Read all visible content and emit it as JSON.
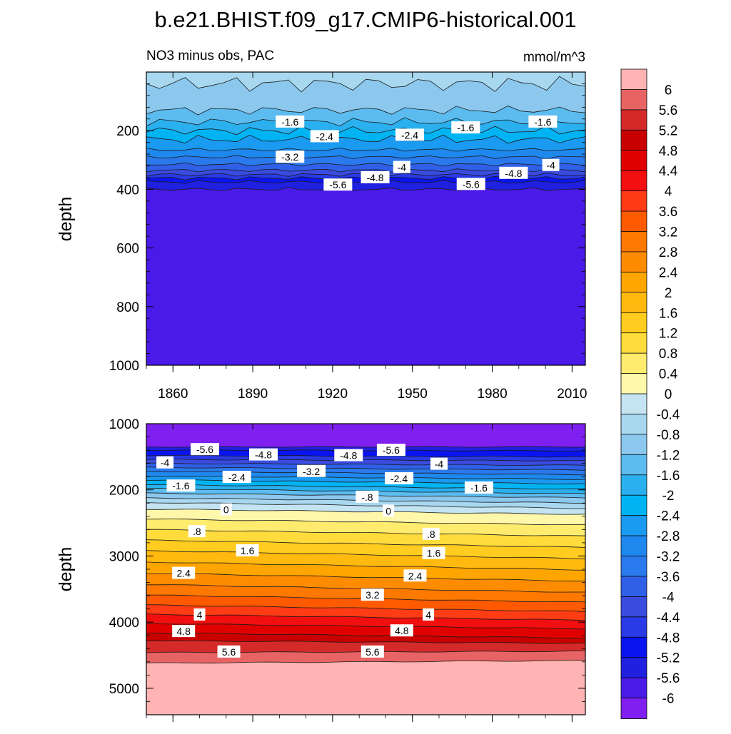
{
  "figure": {
    "title": "b.e21.BHIST.f09_g17.CMIP6-historical.001",
    "left_label": "NO3 minus obs, PAC",
    "units": "mmol/m^3"
  },
  "colorbar": {
    "levels": [
      "6",
      "5.6",
      "5.2",
      "4.8",
      "4.4",
      "4",
      "3.6",
      "3.2",
      "2.8",
      "2.4",
      "2",
      "1.6",
      "1.2",
      "0.8",
      "0.4",
      "0",
      "-0.4",
      "-0.8",
      "-1.2",
      "-1.6",
      "-2",
      "-2.4",
      "-2.8",
      "-3.2",
      "-3.6",
      "-4",
      "-4.4",
      "-4.8",
      "-5.2",
      "-5.6",
      "-6"
    ],
    "colors": [
      "#FFB3B3",
      "#E86464",
      "#D42A2A",
      "#C80000",
      "#E10000",
      "#F20F0F",
      "#FF3C14",
      "#FF5A00",
      "#FF7800",
      "#FF8C00",
      "#FFA500",
      "#FFB90F",
      "#FFCC1F",
      "#FFDC3C",
      "#FFEB6E",
      "#FFF7AA",
      "#C4E4F2",
      "#A8D8F0",
      "#8CC8EE",
      "#5CBCF0",
      "#2AB0EE",
      "#00B4F4",
      "#1A9AF0",
      "#1E88EE",
      "#2A7AEE",
      "#3060E8",
      "#3A4CE0",
      "#2A3AE6",
      "#0A14F0",
      "#2020E0",
      "#4A1AE8",
      "#8020F0"
    ]
  },
  "chart_data": [
    {
      "type": "heatmap",
      "panel": "top",
      "title": "NO3 minus obs, PAC",
      "units": "mmol/m^3",
      "xlabel": "",
      "ylabel": "depth",
      "xlim": [
        1850,
        2015
      ],
      "ylim": [
        0,
        1000
      ],
      "y_reversed": true,
      "x_ticks": [
        "1860",
        "1890",
        "1920",
        "1950",
        "1980",
        "2010"
      ],
      "y_ticks": [
        "200",
        "400",
        "600",
        "800",
        "1000"
      ],
      "contour_lines": [
        {
          "value": -0.8,
          "depth": 40
        },
        {
          "value": -1.2,
          "depth": 130
        },
        {
          "value": -1.6,
          "depth": 170
        },
        {
          "value": -2.0,
          "depth": 200
        },
        {
          "value": -2.4,
          "depth": 230
        },
        {
          "value": -2.8,
          "depth": 265
        },
        {
          "value": -3.2,
          "depth": 290
        },
        {
          "value": -3.6,
          "depth": 315
        },
        {
          "value": -4.0,
          "depth": 335
        },
        {
          "value": -4.4,
          "depth": 350
        },
        {
          "value": -4.8,
          "depth": 362
        },
        {
          "value": -5.2,
          "depth": 375
        },
        {
          "value": -5.6,
          "depth": 400
        }
      ],
      "contour_labels": [
        {
          "text": "-1.6",
          "year": 1904,
          "depth": 170
        },
        {
          "text": "-2.4",
          "year": 1917,
          "depth": 220
        },
        {
          "text": "-2.4",
          "year": 1949,
          "depth": 215
        },
        {
          "text": "-1.6",
          "year": 1970,
          "depth": 190
        },
        {
          "text": "-1.6",
          "year": 1999,
          "depth": 170
        },
        {
          "text": "-3.2",
          "year": 1904,
          "depth": 290
        },
        {
          "text": "-5.6",
          "year": 1922,
          "depth": 385
        },
        {
          "text": "-4.8",
          "year": 1936,
          "depth": 360
        },
        {
          "text": "-4",
          "year": 1946,
          "depth": 325
        },
        {
          "text": "-5.6",
          "year": 1972,
          "depth": 383
        },
        {
          "text": "-4.8",
          "year": 1988,
          "depth": 345
        },
        {
          "text": "-4",
          "year": 2002,
          "depth": 318
        }
      ]
    },
    {
      "type": "heatmap",
      "panel": "bottom",
      "xlabel": "",
      "ylabel": "depth",
      "xlim": [
        1850,
        2015
      ],
      "ylim": [
        1000,
        5400
      ],
      "y_reversed": true,
      "y_ticks": [
        "1000",
        "2000",
        "3000",
        "4000",
        "5000"
      ],
      "contour_lines": [
        {
          "value": -5.6,
          "d_start": 1350,
          "d_end": 1350
        },
        {
          "value": -5.2,
          "d_start": 1400,
          "d_end": 1410
        },
        {
          "value": -4.8,
          "d_start": 1480,
          "d_end": 1500
        },
        {
          "value": -4.4,
          "d_start": 1540,
          "d_end": 1560
        },
        {
          "value": -4.0,
          "d_start": 1600,
          "d_end": 1630
        },
        {
          "value": -3.6,
          "d_start": 1660,
          "d_end": 1700
        },
        {
          "value": -3.2,
          "d_start": 1720,
          "d_end": 1770
        },
        {
          "value": -2.8,
          "d_start": 1790,
          "d_end": 1840
        },
        {
          "value": -2.4,
          "d_start": 1850,
          "d_end": 1910
        },
        {
          "value": -2.0,
          "d_start": 1920,
          "d_end": 1990
        },
        {
          "value": -1.6,
          "d_start": 1980,
          "d_end": 2060
        },
        {
          "value": -1.2,
          "d_start": 2050,
          "d_end": 2120
        },
        {
          "value": -0.8,
          "d_start": 2120,
          "d_end": 2200
        },
        {
          "value": -0.4,
          "d_start": 2190,
          "d_end": 2280
        },
        {
          "value": 0.0,
          "d_start": 2290,
          "d_end": 2370
        },
        {
          "value": 0.4,
          "d_start": 2440,
          "d_end": 2530
        },
        {
          "value": 0.8,
          "d_start": 2600,
          "d_end": 2700
        },
        {
          "value": 1.2,
          "d_start": 2760,
          "d_end": 2870
        },
        {
          "value": 1.6,
          "d_start": 2920,
          "d_end": 3040
        },
        {
          "value": 2.0,
          "d_start": 3090,
          "d_end": 3210
        },
        {
          "value": 2.4,
          "d_start": 3260,
          "d_end": 3380
        },
        {
          "value": 2.8,
          "d_start": 3430,
          "d_end": 3550
        },
        {
          "value": 3.2,
          "d_start": 3590,
          "d_end": 3700
        },
        {
          "value": 3.6,
          "d_start": 3740,
          "d_end": 3840
        },
        {
          "value": 4.0,
          "d_start": 3880,
          "d_end": 3970
        },
        {
          "value": 4.4,
          "d_start": 4020,
          "d_end": 4100
        },
        {
          "value": 4.8,
          "d_start": 4160,
          "d_end": 4240
        },
        {
          "value": 5.2,
          "d_start": 4280,
          "d_end": 4320
        },
        {
          "value": 5.6,
          "d_start": 4460,
          "d_end": 4440
        },
        {
          "value": 6.0,
          "d_start": 4620,
          "d_end": 4580
        }
      ],
      "contour_labels": [
        {
          "text": "-5.6",
          "year": 1872,
          "depth": 1390
        },
        {
          "text": "-4",
          "year": 1857,
          "depth": 1590
        },
        {
          "text": "-4.8",
          "year": 1894,
          "depth": 1470
        },
        {
          "text": "-4.8",
          "year": 1926,
          "depth": 1480
        },
        {
          "text": "-5.6",
          "year": 1942,
          "depth": 1400
        },
        {
          "text": "-4",
          "year": 1960,
          "depth": 1610
        },
        {
          "text": "-2.4",
          "year": 1884,
          "depth": 1810
        },
        {
          "text": "-3.2",
          "year": 1912,
          "depth": 1720
        },
        {
          "text": "-2.4",
          "year": 1945,
          "depth": 1830
        },
        {
          "text": "-1.6",
          "year": 1863,
          "depth": 1940
        },
        {
          "text": "-1.6",
          "year": 1975,
          "depth": 1970
        },
        {
          "text": "-.8",
          "year": 1933,
          "depth": 2110
        },
        {
          "text": "0",
          "year": 1880,
          "depth": 2300
        },
        {
          "text": "0",
          "year": 1941,
          "depth": 2320
        },
        {
          "text": ".8",
          "year": 1869,
          "depth": 2630
        },
        {
          "text": ".8",
          "year": 1957,
          "depth": 2670
        },
        {
          "text": "1.6",
          "year": 1888,
          "depth": 2920
        },
        {
          "text": "1.6",
          "year": 1958,
          "depth": 2960
        },
        {
          "text": "2.4",
          "year": 1864,
          "depth": 3260
        },
        {
          "text": "2.4",
          "year": 1951,
          "depth": 3300
        },
        {
          "text": "3.2",
          "year": 1935,
          "depth": 3590
        },
        {
          "text": "4",
          "year": 1870,
          "depth": 3890
        },
        {
          "text": "4",
          "year": 1956,
          "depth": 3890
        },
        {
          "text": "4.8",
          "year": 1864,
          "depth": 4140
        },
        {
          "text": "4.8",
          "year": 1946,
          "depth": 4130
        },
        {
          "text": "5.6",
          "year": 1881,
          "depth": 4450
        },
        {
          "text": "5.6",
          "year": 1935,
          "depth": 4450
        }
      ]
    }
  ]
}
